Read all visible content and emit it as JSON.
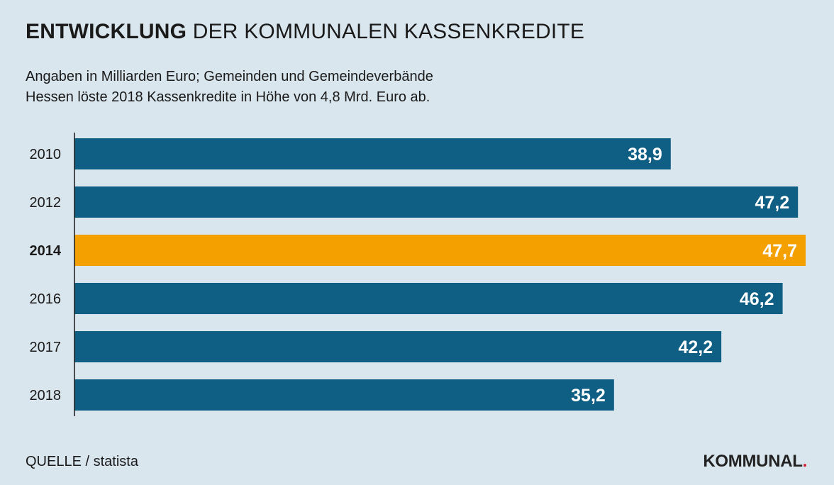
{
  "header": {
    "title_bold": "ENTWICKLUNG",
    "title_rest": "DER KOMMUNALEN KASSENKREDITE",
    "subtitle_line1": "Angaben in Milliarden Euro; Gemeinden und Gemeindeverbände",
    "subtitle_line2": "Hessen löste 2018 Kassenkredite in Höhe von 4,8 Mrd. Euro ab."
  },
  "footer": {
    "source": "QUELLE / statista",
    "logo_text": "KOMMUNAL",
    "logo_dot": "."
  },
  "colors": {
    "bar": "#0f5f85",
    "highlight": "#f3a000",
    "label_text": "#ffffff",
    "axis": "#1a1a1a"
  },
  "chart_data": {
    "type": "bar",
    "orientation": "horizontal",
    "categories": [
      "2010",
      "2012",
      "2014",
      "2016",
      "2017",
      "2018"
    ],
    "values": [
      38.9,
      47.2,
      47.7,
      46.2,
      42.2,
      35.2
    ],
    "value_labels": [
      "38,9",
      "47,2",
      "47,7",
      "46,2",
      "42,2",
      "35,2"
    ],
    "highlight_category": "2014",
    "title": "ENTWICKLUNG DER KOMMUNALEN KASSENKREDITE",
    "unit": "Milliarden Euro",
    "xlim": [
      0,
      47.7
    ],
    "grid": false,
    "legend": "none"
  }
}
